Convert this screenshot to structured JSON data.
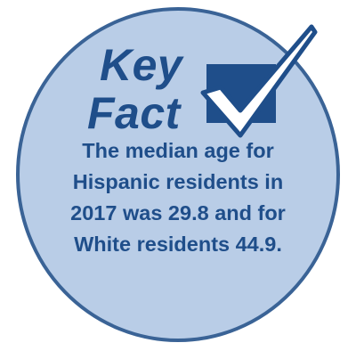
{
  "badge": {
    "title_line1": "Key",
    "title_line2": "Fact",
    "icon": "checkbox-checkmark-icon",
    "lines": [
      "The median age for",
      "Hispanic residents in",
      "2017 was 29.8 and for",
      "White residents 44.9."
    ]
  },
  "colors": {
    "circle_fill": "#b9cde7",
    "circle_stroke": "#3a6396",
    "text": "#1f4e8a"
  }
}
